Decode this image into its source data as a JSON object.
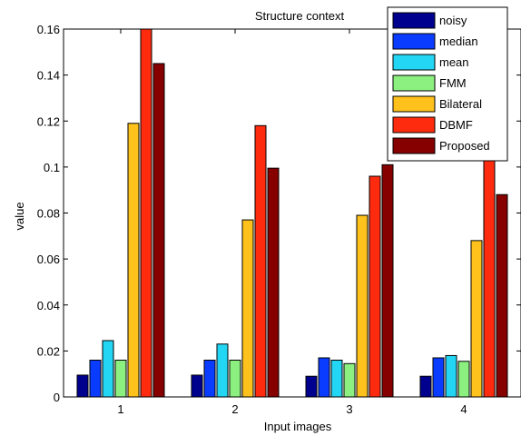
{
  "chart_data": {
    "type": "bar",
    "title": "Structure context",
    "xlabel": "Input images",
    "ylabel": "value",
    "categories": [
      "1",
      "2",
      "3",
      "4"
    ],
    "ylim": [
      0,
      0.16
    ],
    "yticks": [
      "0",
      "0.02",
      "0.04",
      "0.06",
      "0.08",
      "0.1",
      "0.12",
      "0.14",
      "0.16"
    ],
    "grid": false,
    "legend_position": "top-right",
    "series": [
      {
        "name": "noisy",
        "color": "#00008f",
        "values": [
          0.0095,
          0.0095,
          0.009,
          0.009
        ]
      },
      {
        "name": "median",
        "color": "#0a3cff",
        "values": [
          0.016,
          0.016,
          0.017,
          0.017
        ]
      },
      {
        "name": "mean",
        "color": "#22d6f4",
        "values": [
          0.0245,
          0.023,
          0.016,
          0.018
        ]
      },
      {
        "name": "FMM",
        "color": "#8cf080",
        "values": [
          0.016,
          0.016,
          0.0145,
          0.0155
        ]
      },
      {
        "name": "Bilateral",
        "color": "#ffc21c",
        "values": [
          0.119,
          0.077,
          0.079,
          0.068
        ]
      },
      {
        "name": "DBMF",
        "color": "#ff2b0e",
        "values": [
          0.16,
          0.118,
          0.096,
          0.104
        ]
      },
      {
        "name": "Proposed",
        "color": "#860000",
        "values": [
          0.145,
          0.0995,
          0.101,
          0.088
        ]
      }
    ]
  }
}
